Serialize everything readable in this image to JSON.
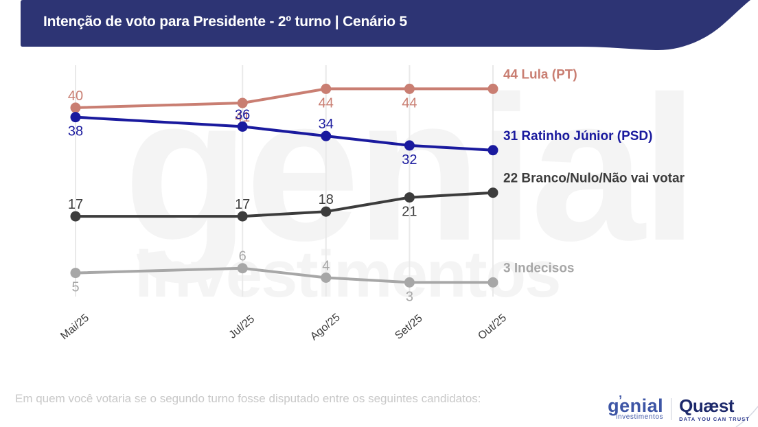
{
  "header": {
    "title": "Intenção de voto para Presidente - 2º turno | Cenário 5",
    "bg_color": "#2d3474"
  },
  "watermark": {
    "line1": "genial",
    "line2": "investimentos"
  },
  "chart_data": {
    "type": "line",
    "title": "Intenção de voto para Presidente - 2º turno | Cenário 5",
    "categories": [
      "Mai/25",
      "Jul/25",
      "Ago/25",
      "Set/25",
      "Out/25"
    ],
    "month_offsets": [
      0,
      2,
      3,
      4,
      5
    ],
    "ylim": [
      0,
      49
    ],
    "grid": "vertical-only",
    "legend_position": "right-of-last-point",
    "series": [
      {
        "name": "Lula (PT)",
        "values": [
          40,
          41,
          44,
          44,
          44
        ],
        "color": "#c97e72",
        "end_label": "44 Lula (PT)",
        "label_sides": [
          "above",
          "below",
          "below",
          "below",
          "none"
        ]
      },
      {
        "name": "Ratinho Júnior (PSD)",
        "values": [
          38,
          36,
          34,
          32,
          31
        ],
        "color": "#1a1a9e",
        "end_label": "31 Ratinho Júnior (PSD)",
        "label_sides": [
          "below",
          "above",
          "above",
          "below",
          "none"
        ]
      },
      {
        "name": "Branco/Nulo/Não vai votar",
        "values": [
          17,
          17,
          18,
          21,
          22
        ],
        "color": "#3c3c3c",
        "end_label": "22 Branco/Nulo/Não vai votar",
        "label_sides": [
          "above",
          "above",
          "above",
          "below",
          "none"
        ]
      },
      {
        "name": "Indecisos",
        "values": [
          5,
          6,
          4,
          3,
          3
        ],
        "color": "#a7a7a7",
        "end_label": "3 Indecisos",
        "label_sides": [
          "below",
          "above",
          "above",
          "below",
          "none"
        ]
      }
    ],
    "gridline_color": "#e9e9e9"
  },
  "footer": {
    "question": "Em quem você votaria se o segundo turno fosse disputado entre os seguintes candidatos:"
  },
  "logos": {
    "genial": {
      "name": "genial",
      "accent": "’",
      "sub": "investimentos",
      "color": "#3d55a5"
    },
    "quaest": {
      "name": "Quæst",
      "tagline": "DATA YOU CAN TRUST",
      "color": "#1d296b"
    }
  }
}
